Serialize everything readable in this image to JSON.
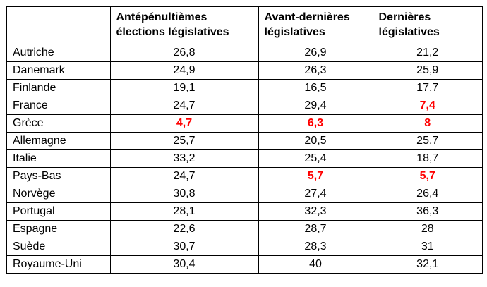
{
  "colors": {
    "highlight_red": "#ff0000",
    "text": "#000000",
    "border": "#000000",
    "background": "#ffffff"
  },
  "table": {
    "corner_header": "",
    "columns": [
      "Antépénultièmes élections législatives",
      "Avant-dernières législatives",
      "Dernières législatives"
    ],
    "rows": [
      {
        "country": "Autriche",
        "values": [
          "26,8",
          "26,9",
          "21,2"
        ],
        "red": [
          false,
          false,
          false
        ]
      },
      {
        "country": "Danemark",
        "values": [
          "24,9",
          "26,3",
          "25,9"
        ],
        "red": [
          false,
          false,
          false
        ]
      },
      {
        "country": "Finlande",
        "values": [
          "19,1",
          "16,5",
          "17,7"
        ],
        "red": [
          false,
          false,
          false
        ]
      },
      {
        "country": "France",
        "values": [
          "24,7",
          "29,4",
          "7,4"
        ],
        "red": [
          false,
          false,
          true
        ]
      },
      {
        "country": "Grèce",
        "values": [
          "4,7",
          "6,3",
          "8"
        ],
        "red": [
          true,
          true,
          true
        ]
      },
      {
        "country": "Allemagne",
        "values": [
          "25,7",
          "20,5",
          "25,7"
        ],
        "red": [
          false,
          false,
          false
        ]
      },
      {
        "country": "Italie",
        "values": [
          "33,2",
          "25,4",
          "18,7"
        ],
        "red": [
          false,
          false,
          false
        ]
      },
      {
        "country": "Pays-Bas",
        "values": [
          "24,7",
          "5,7",
          "5,7"
        ],
        "red": [
          false,
          true,
          true
        ]
      },
      {
        "country": "Norvège",
        "values": [
          "30,8",
          "27,4",
          "26,4"
        ],
        "red": [
          false,
          false,
          false
        ]
      },
      {
        "country": "Portugal",
        "values": [
          "28,1",
          "32,3",
          "36,3"
        ],
        "red": [
          false,
          false,
          false
        ]
      },
      {
        "country": "Espagne",
        "values": [
          "22,6",
          "28,7",
          "28"
        ],
        "red": [
          false,
          false,
          false
        ]
      },
      {
        "country": "Suède",
        "values": [
          "30,7",
          "28,3",
          "31"
        ],
        "red": [
          false,
          false,
          false
        ]
      },
      {
        "country": "Royaume-Uni",
        "values": [
          "30,4",
          "40",
          "32,1"
        ],
        "red": [
          false,
          false,
          false
        ]
      }
    ]
  },
  "chart_data": {
    "type": "table",
    "title": "",
    "categories": [
      "Autriche",
      "Danemark",
      "Finlande",
      "France",
      "Grèce",
      "Allemagne",
      "Italie",
      "Pays-Bas",
      "Norvège",
      "Portugal",
      "Espagne",
      "Suède",
      "Royaume-Uni"
    ],
    "series": [
      {
        "name": "Antépénultièmes élections législatives",
        "values": [
          26.8,
          24.9,
          19.1,
          24.7,
          4.7,
          25.7,
          33.2,
          24.7,
          30.8,
          28.1,
          22.6,
          30.7,
          30.4
        ]
      },
      {
        "name": "Avant-dernières législatives",
        "values": [
          26.9,
          26.3,
          16.5,
          29.4,
          6.3,
          20.5,
          25.4,
          5.7,
          27.4,
          32.3,
          28.7,
          28.3,
          40
        ]
      },
      {
        "name": "Dernières législatives",
        "values": [
          21.2,
          25.9,
          17.7,
          7.4,
          8,
          25.7,
          18.7,
          5.7,
          26.4,
          36.3,
          28,
          31,
          32.1
        ]
      }
    ],
    "highlighted_red_cells": [
      {
        "country": "France",
        "series": "Dernières législatives",
        "value": 7.4
      },
      {
        "country": "Grèce",
        "series": "Antépénultièmes élections législatives",
        "value": 4.7
      },
      {
        "country": "Grèce",
        "series": "Avant-dernières législatives",
        "value": 6.3
      },
      {
        "country": "Grèce",
        "series": "Dernières législatives",
        "value": 8
      },
      {
        "country": "Pays-Bas",
        "series": "Avant-dernières législatives",
        "value": 5.7
      },
      {
        "country": "Pays-Bas",
        "series": "Dernières législatives",
        "value": 5.7
      }
    ],
    "layout": {
      "grid": "full-borders",
      "legend_position": "none"
    }
  }
}
